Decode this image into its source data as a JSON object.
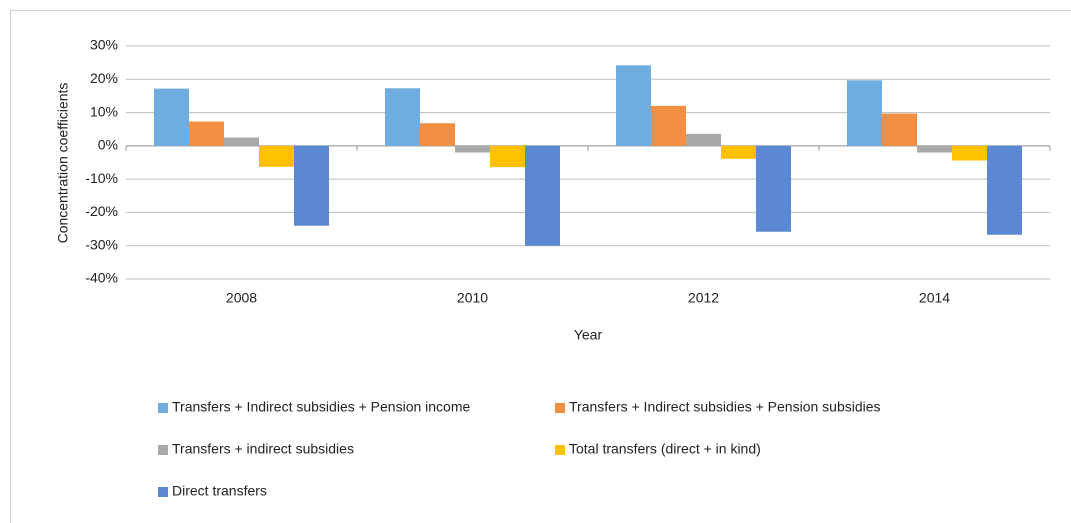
{
  "chart_data": {
    "type": "bar",
    "x_label": "Year",
    "y_label": "Concentration coefficients",
    "categories": [
      "2008",
      "2010",
      "2012",
      "2014"
    ],
    "series": [
      {
        "name": "Transfers + Indirect subsidies + Pension income",
        "color": "#6fade0",
        "values": [
          17.2,
          17.3,
          24.2,
          19.7
        ]
      },
      {
        "name": "Transfers + Indirect subsidies + Pension subsidies",
        "color": "#f28f43",
        "values": [
          7.3,
          6.8,
          12,
          9.7
        ]
      },
      {
        "name": "Transfers + indirect subsidies",
        "color": "#a9a9a9",
        "values": [
          2.5,
          -2,
          3.6,
          -2
        ]
      },
      {
        "name": "Total transfers (direct + in kind)",
        "color": "#ffc000",
        "values": [
          -6.3,
          -6.4,
          -3.9,
          -4.4
        ]
      },
      {
        "name": "Direct transfers",
        "color": "#5b87d3",
        "values": [
          -24,
          -30,
          -25.8,
          -26.7
        ]
      }
    ],
    "ylim": [
      -40,
      30
    ],
    "yticks": [
      {
        "value": -40,
        "label": "-40%"
      },
      {
        "value": -30,
        "label": "-30%"
      },
      {
        "value": -20,
        "label": "-20%"
      },
      {
        "value": -10,
        "label": "-10%"
      },
      {
        "value": 0,
        "label": "0%"
      },
      {
        "value": 10,
        "label": "10%"
      },
      {
        "value": 20,
        "label": "20%"
      },
      {
        "value": 30,
        "label": "30%"
      }
    ],
    "grid": true
  }
}
